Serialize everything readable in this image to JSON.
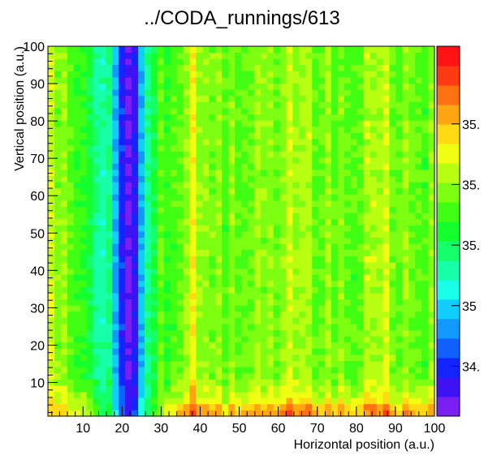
{
  "chart_data": {
    "type": "heatmap",
    "title": "../CODA_runnings/613",
    "xlabel": "Horizontal position (a.u.)",
    "ylabel": "Vertical position (a.u.)",
    "xlim": [
      1,
      100
    ],
    "ylim": [
      1,
      100
    ],
    "x_ticks": [
      "10",
      "20",
      "30",
      "40",
      "50",
      "60",
      "70",
      "80",
      "90",
      "100"
    ],
    "y_ticks": [
      "10",
      "20",
      "30",
      "40",
      "50",
      "60",
      "70",
      "80",
      "90",
      "100"
    ],
    "colorbar_ticks": [
      "34.",
      "35",
      "35.",
      "35.",
      "35."
    ],
    "palette": [
      "#7a1ef2",
      "#3d12f5",
      "#1424ff",
      "#1060ff",
      "#1298ff",
      "#12cdff",
      "#19ffe9",
      "#17ffa8",
      "#14ff6a",
      "#14ff2e",
      "#40ff12",
      "#7dff12",
      "#b8ff12",
      "#f0ff12",
      "#ffd912",
      "#ffa512",
      "#ff7012",
      "#ff3a12",
      "#ff1212"
    ],
    "description": "Intensity map; low-value band near x≈20-24 (blue), cyan band x≈8-32, elevated yellow/red values near bottom (y<10) and near x≈36-40 and x≈82-88.",
    "grid": false,
    "colorbar": "right"
  }
}
